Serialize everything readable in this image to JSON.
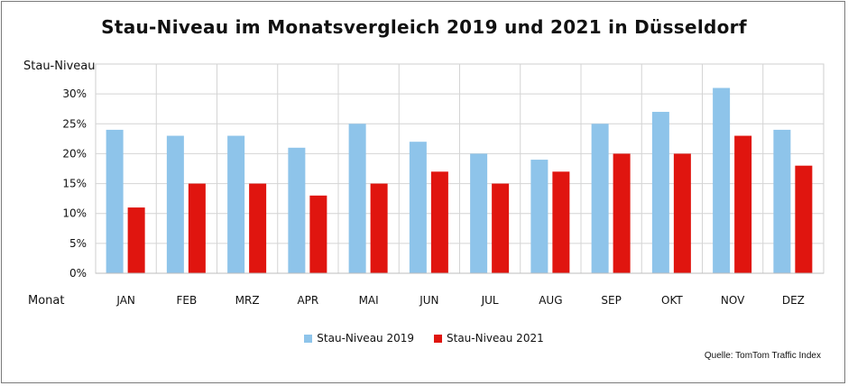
{
  "chart_data": {
    "type": "bar",
    "title": "Stau-Niveau im Monatsvergleich 2019 und 2021 in Düsseldorf",
    "ylabel": "Stau-Niveau",
    "xlabel": "Monat",
    "ylim": [
      0,
      35
    ],
    "yticks": [
      0,
      5,
      10,
      15,
      20,
      25,
      30
    ],
    "ytick_labels": [
      "0%",
      "5%",
      "10%",
      "15%",
      "20%",
      "25%",
      "30%"
    ],
    "grid": true,
    "legend": "bottom-center",
    "categories": [
      "JAN",
      "FEB",
      "MRZ",
      "APR",
      "MAI",
      "JUN",
      "JUL",
      "AUG",
      "SEP",
      "OKT",
      "NOV",
      "DEZ"
    ],
    "series": [
      {
        "name": "Stau-Niveau 2019",
        "color": "#8ec4ea",
        "values": [
          24,
          23,
          23,
          21,
          25,
          22,
          20,
          19,
          25,
          27,
          31,
          24
        ]
      },
      {
        "name": "Stau-Niveau 2021",
        "color": "#e0150f",
        "values": [
          11,
          15,
          15,
          13,
          15,
          17,
          15,
          17,
          20,
          20,
          23,
          18
        ]
      }
    ],
    "source": "Quelle: TomTom Traffic Index"
  }
}
